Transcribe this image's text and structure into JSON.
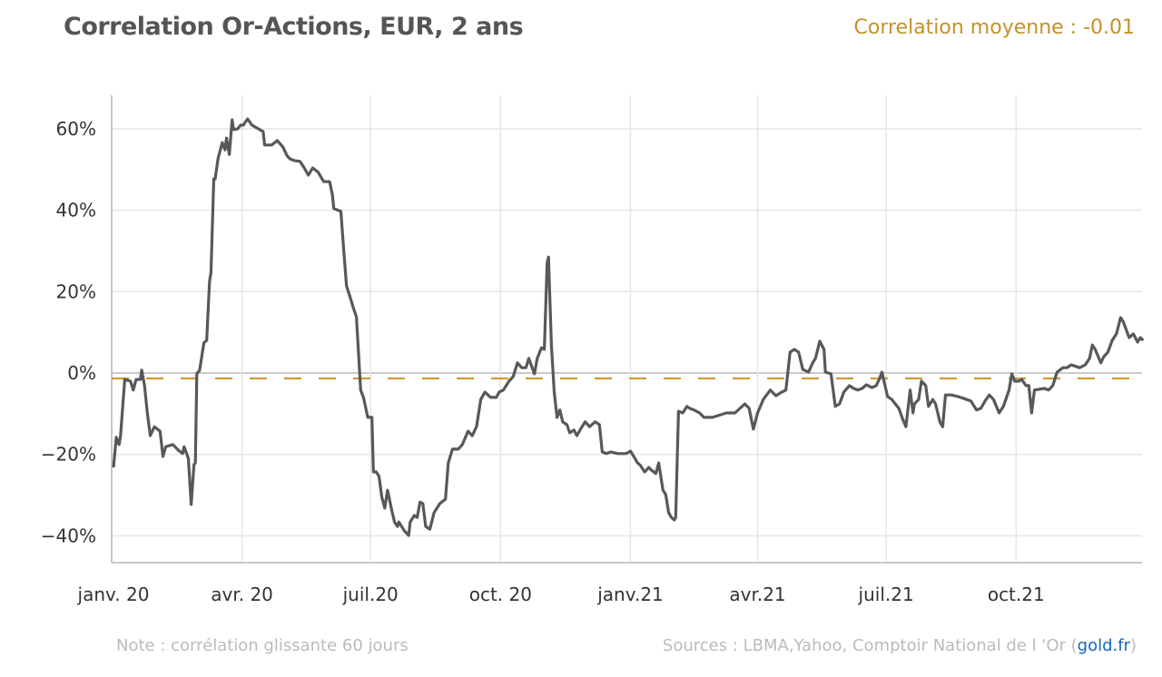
{
  "header": {
    "title": "Correlation Or-Actions, EUR, 2 ans",
    "mean_label": "Correlation moyenne : -0.01"
  },
  "footer": {
    "note": "Note : corrélation glissante   60 jours",
    "sources_prefix": "Sources : LBMA,Yahoo, Comptoir National de l  'Or (",
    "sources_link": "gold.fr",
    "sources_suffix": ")"
  },
  "colors": {
    "line": "#58585c",
    "mean": "#d09a34",
    "grid": "#e6e6e6",
    "zero": "#b8b8b8",
    "link": "#1565c0"
  },
  "chart_data": {
    "type": "line",
    "title": "Correlation Or-Actions, EUR, 2 ans",
    "xlabel": "",
    "ylabel": "",
    "x_unit": "days since 2020-01-01",
    "xlim": [
      0,
      730
    ],
    "ylim": [
      -45,
      68
    ],
    "grid": true,
    "mean": -1,
    "y_ticks": [
      {
        "v": 60,
        "label": "60%"
      },
      {
        "v": 40,
        "label": "40%"
      },
      {
        "v": 20,
        "label": "20%"
      },
      {
        "v": 0,
        "label": "0%"
      },
      {
        "v": -20,
        "label": "−20%"
      },
      {
        "v": -40,
        "label": "−40%"
      }
    ],
    "x_ticks": [
      {
        "d": 0,
        "label": "janv. 20"
      },
      {
        "d": 91,
        "label": "avr. 20"
      },
      {
        "d": 182,
        "label": "juil.20"
      },
      {
        "d": 274,
        "label": "oct. 20"
      },
      {
        "d": 366,
        "label": "janv.21"
      },
      {
        "d": 456,
        "label": "avr.21"
      },
      {
        "d": 547,
        "label": "juil.21"
      },
      {
        "d": 639,
        "label": "oct.21"
      }
    ],
    "series": [
      {
        "name": "Corrélation glissante 60 jours (%)",
        "points": [
          [
            0,
            -23.2
          ],
          [
            2,
            -15.8
          ],
          [
            4,
            -17.6
          ],
          [
            5,
            -15.4
          ],
          [
            8,
            -1.6
          ],
          [
            12,
            -2.0
          ],
          [
            14,
            -4.2
          ],
          [
            16,
            -1.6
          ],
          [
            19,
            -1.6
          ],
          [
            20,
            0.7
          ],
          [
            22,
            -3.1
          ],
          [
            24,
            -9.8
          ],
          [
            26,
            -15.4
          ],
          [
            29,
            -13.2
          ],
          [
            33,
            -14.3
          ],
          [
            35,
            -20.5
          ],
          [
            37,
            -18.1
          ],
          [
            42,
            -17.6
          ],
          [
            46,
            -19.0
          ],
          [
            49,
            -19.8
          ],
          [
            50,
            -18.1
          ],
          [
            53,
            -21.0
          ],
          [
            55,
            -32.3
          ],
          [
            57,
            -22.5
          ],
          [
            58,
            -22.1
          ],
          [
            59,
            -0.2
          ],
          [
            61,
            0.7
          ],
          [
            64,
            7.4
          ],
          [
            66,
            8.0
          ],
          [
            68,
            22.5
          ],
          [
            69,
            24.7
          ],
          [
            71,
            47.7
          ],
          [
            72,
            47.7
          ],
          [
            74,
            52.6
          ],
          [
            77,
            56.6
          ],
          [
            79,
            54.8
          ],
          [
            80,
            57.7
          ],
          [
            82,
            53.7
          ],
          [
            84,
            62.2
          ],
          [
            85,
            59.8
          ],
          [
            88,
            60.0
          ],
          [
            90,
            60.9
          ],
          [
            92,
            60.9
          ],
          [
            93,
            61.5
          ],
          [
            95,
            62.4
          ],
          [
            98,
            60.9
          ],
          [
            106,
            59.3
          ],
          [
            107,
            56.0
          ],
          [
            112,
            56.0
          ],
          [
            116,
            57.1
          ],
          [
            120,
            55.5
          ],
          [
            123,
            53.3
          ],
          [
            125,
            52.6
          ],
          [
            128,
            52.2
          ],
          [
            132,
            52.0
          ],
          [
            135,
            50.4
          ],
          [
            138,
            48.6
          ],
          [
            141,
            50.4
          ],
          [
            145,
            49.3
          ],
          [
            148,
            47.5
          ],
          [
            149,
            47.0
          ],
          [
            153,
            47.0
          ],
          [
            155,
            43.7
          ],
          [
            156,
            40.4
          ],
          [
            161,
            39.7
          ],
          [
            163,
            30.3
          ],
          [
            165,
            21.4
          ],
          [
            168,
            18.1
          ],
          [
            170,
            15.8
          ],
          [
            172,
            13.8
          ],
          [
            175,
            -4.2
          ],
          [
            177,
            -6.0
          ],
          [
            180,
            -10.9
          ],
          [
            183,
            -10.9
          ],
          [
            184,
            -24.3
          ],
          [
            186,
            -24.3
          ],
          [
            188,
            -25.4
          ],
          [
            190,
            -30.5
          ],
          [
            192,
            -33.2
          ],
          [
            194,
            -28.8
          ],
          [
            197,
            -33.7
          ],
          [
            199,
            -36.6
          ],
          [
            201,
            -37.7
          ],
          [
            202,
            -36.6
          ],
          [
            206,
            -38.8
          ],
          [
            209,
            -39.9
          ],
          [
            210,
            -36.6
          ],
          [
            213,
            -35.0
          ],
          [
            215,
            -35.5
          ],
          [
            217,
            -31.7
          ],
          [
            219,
            -32.1
          ],
          [
            221,
            -37.7
          ],
          [
            224,
            -38.4
          ],
          [
            227,
            -34.3
          ],
          [
            231,
            -32.1
          ],
          [
            235,
            -31.0
          ],
          [
            237,
            -22.1
          ],
          [
            240,
            -18.7
          ],
          [
            244,
            -18.7
          ],
          [
            247,
            -17.6
          ],
          [
            251,
            -14.3
          ],
          [
            254,
            -15.4
          ],
          [
            257,
            -13.2
          ],
          [
            260,
            -6.5
          ],
          [
            263,
            -4.7
          ],
          [
            267,
            -6.0
          ],
          [
            271,
            -6.0
          ],
          [
            273,
            -4.7
          ],
          [
            276,
            -4.2
          ],
          [
            280,
            -2.0
          ],
          [
            283,
            -0.9
          ],
          [
            286,
            2.5
          ],
          [
            289,
            1.3
          ],
          [
            292,
            1.3
          ],
          [
            294,
            3.6
          ],
          [
            298,
            -0.2
          ],
          [
            300,
            3.6
          ],
          [
            303,
            6.2
          ],
          [
            305,
            5.8
          ],
          [
            307,
            27.0
          ],
          [
            308,
            28.5
          ],
          [
            310,
            6.9
          ],
          [
            312,
            -4.7
          ],
          [
            314,
            -10.9
          ],
          [
            316,
            -9.1
          ],
          [
            318,
            -12.0
          ],
          [
            321,
            -12.7
          ],
          [
            323,
            -14.7
          ],
          [
            326,
            -14.0
          ],
          [
            328,
            -15.4
          ],
          [
            331,
            -13.6
          ],
          [
            334,
            -12.0
          ],
          [
            337,
            -13.2
          ],
          [
            341,
            -12.0
          ],
          [
            344,
            -12.7
          ],
          [
            346,
            -19.4
          ],
          [
            349,
            -19.8
          ],
          [
            352,
            -19.4
          ],
          [
            357,
            -19.8
          ],
          [
            363,
            -19.8
          ],
          [
            366,
            -19.2
          ],
          [
            368,
            -20.3
          ],
          [
            371,
            -22.1
          ],
          [
            373,
            -22.7
          ],
          [
            376,
            -24.3
          ],
          [
            379,
            -23.2
          ],
          [
            381,
            -23.9
          ],
          [
            384,
            -24.7
          ],
          [
            386,
            -22.1
          ],
          [
            389,
            -28.8
          ],
          [
            391,
            -29.9
          ],
          [
            393,
            -34.3
          ],
          [
            395,
            -35.5
          ],
          [
            397,
            -36.1
          ],
          [
            398,
            -35.5
          ],
          [
            400,
            -9.4
          ],
          [
            403,
            -9.8
          ],
          [
            406,
            -8.2
          ],
          [
            408,
            -8.7
          ],
          [
            411,
            -9.1
          ],
          [
            415,
            -9.8
          ],
          [
            418,
            -10.9
          ],
          [
            424,
            -10.9
          ],
          [
            434,
            -9.8
          ],
          [
            440,
            -9.8
          ],
          [
            447,
            -7.6
          ],
          [
            450,
            -8.7
          ],
          [
            453,
            -13.8
          ],
          [
            456,
            -9.8
          ],
          [
            460,
            -6.5
          ],
          [
            465,
            -4.2
          ],
          [
            469,
            -5.6
          ],
          [
            472,
            -4.9
          ],
          [
            476,
            -4.2
          ],
          [
            479,
            5.1
          ],
          [
            482,
            5.8
          ],
          [
            485,
            5.1
          ],
          [
            488,
            0.9
          ],
          [
            492,
            0.2
          ],
          [
            495,
            2.5
          ],
          [
            497,
            3.6
          ],
          [
            500,
            7.8
          ],
          [
            503,
            5.8
          ],
          [
            504,
            0.2
          ],
          [
            508,
            -0.2
          ],
          [
            511,
            -8.2
          ],
          [
            514,
            -7.6
          ],
          [
            517,
            -4.7
          ],
          [
            521,
            -3.1
          ],
          [
            524,
            -3.8
          ],
          [
            527,
            -4.2
          ],
          [
            530,
            -3.8
          ],
          [
            533,
            -2.9
          ],
          [
            537,
            -3.6
          ],
          [
            540,
            -3.1
          ],
          [
            542,
            -1.6
          ],
          [
            544,
            0.2
          ],
          [
            548,
            -5.8
          ],
          [
            551,
            -6.5
          ],
          [
            556,
            -8.7
          ],
          [
            559,
            -11.6
          ],
          [
            561,
            -13.2
          ],
          [
            564,
            -4.2
          ],
          [
            566,
            -9.8
          ],
          [
            567,
            -7.6
          ],
          [
            570,
            -6.5
          ],
          [
            572,
            -2.0
          ],
          [
            575,
            -3.1
          ],
          [
            577,
            -8.2
          ],
          [
            580,
            -6.5
          ],
          [
            582,
            -7.6
          ],
          [
            585,
            -12.0
          ],
          [
            587,
            -13.2
          ],
          [
            589,
            -5.4
          ],
          [
            593,
            -5.4
          ],
          [
            598,
            -5.8
          ],
          [
            604,
            -6.5
          ],
          [
            607,
            -6.9
          ],
          [
            611,
            -9.1
          ],
          [
            614,
            -8.7
          ],
          [
            617,
            -6.9
          ],
          [
            620,
            -5.4
          ],
          [
            623,
            -6.5
          ],
          [
            627,
            -9.8
          ],
          [
            630,
            -8.2
          ],
          [
            634,
            -4.2
          ],
          [
            636,
            -0.2
          ],
          [
            638,
            -2.0
          ],
          [
            641,
            -2.0
          ],
          [
            643,
            -1.6
          ],
          [
            646,
            -3.1
          ],
          [
            648,
            -3.1
          ],
          [
            650,
            -9.8
          ],
          [
            652,
            -4.2
          ],
          [
            659,
            -3.8
          ],
          [
            662,
            -4.2
          ],
          [
            665,
            -3.1
          ],
          [
            668,
            0.2
          ],
          [
            672,
            1.3
          ],
          [
            675,
            1.3
          ],
          [
            678,
            2.0
          ],
          [
            684,
            1.3
          ],
          [
            688,
            2.0
          ],
          [
            691,
            3.6
          ],
          [
            693,
            6.9
          ],
          [
            695,
            5.8
          ],
          [
            699,
            2.5
          ],
          [
            701,
            4.0
          ],
          [
            704,
            5.1
          ],
          [
            707,
            8.0
          ],
          [
            710,
            9.6
          ],
          [
            713,
            13.6
          ],
          [
            715,
            12.5
          ],
          [
            719,
            8.7
          ],
          [
            722,
            9.6
          ],
          [
            725,
            7.6
          ],
          [
            727,
            8.7
          ],
          [
            729,
            8.0
          ]
        ]
      }
    ]
  }
}
